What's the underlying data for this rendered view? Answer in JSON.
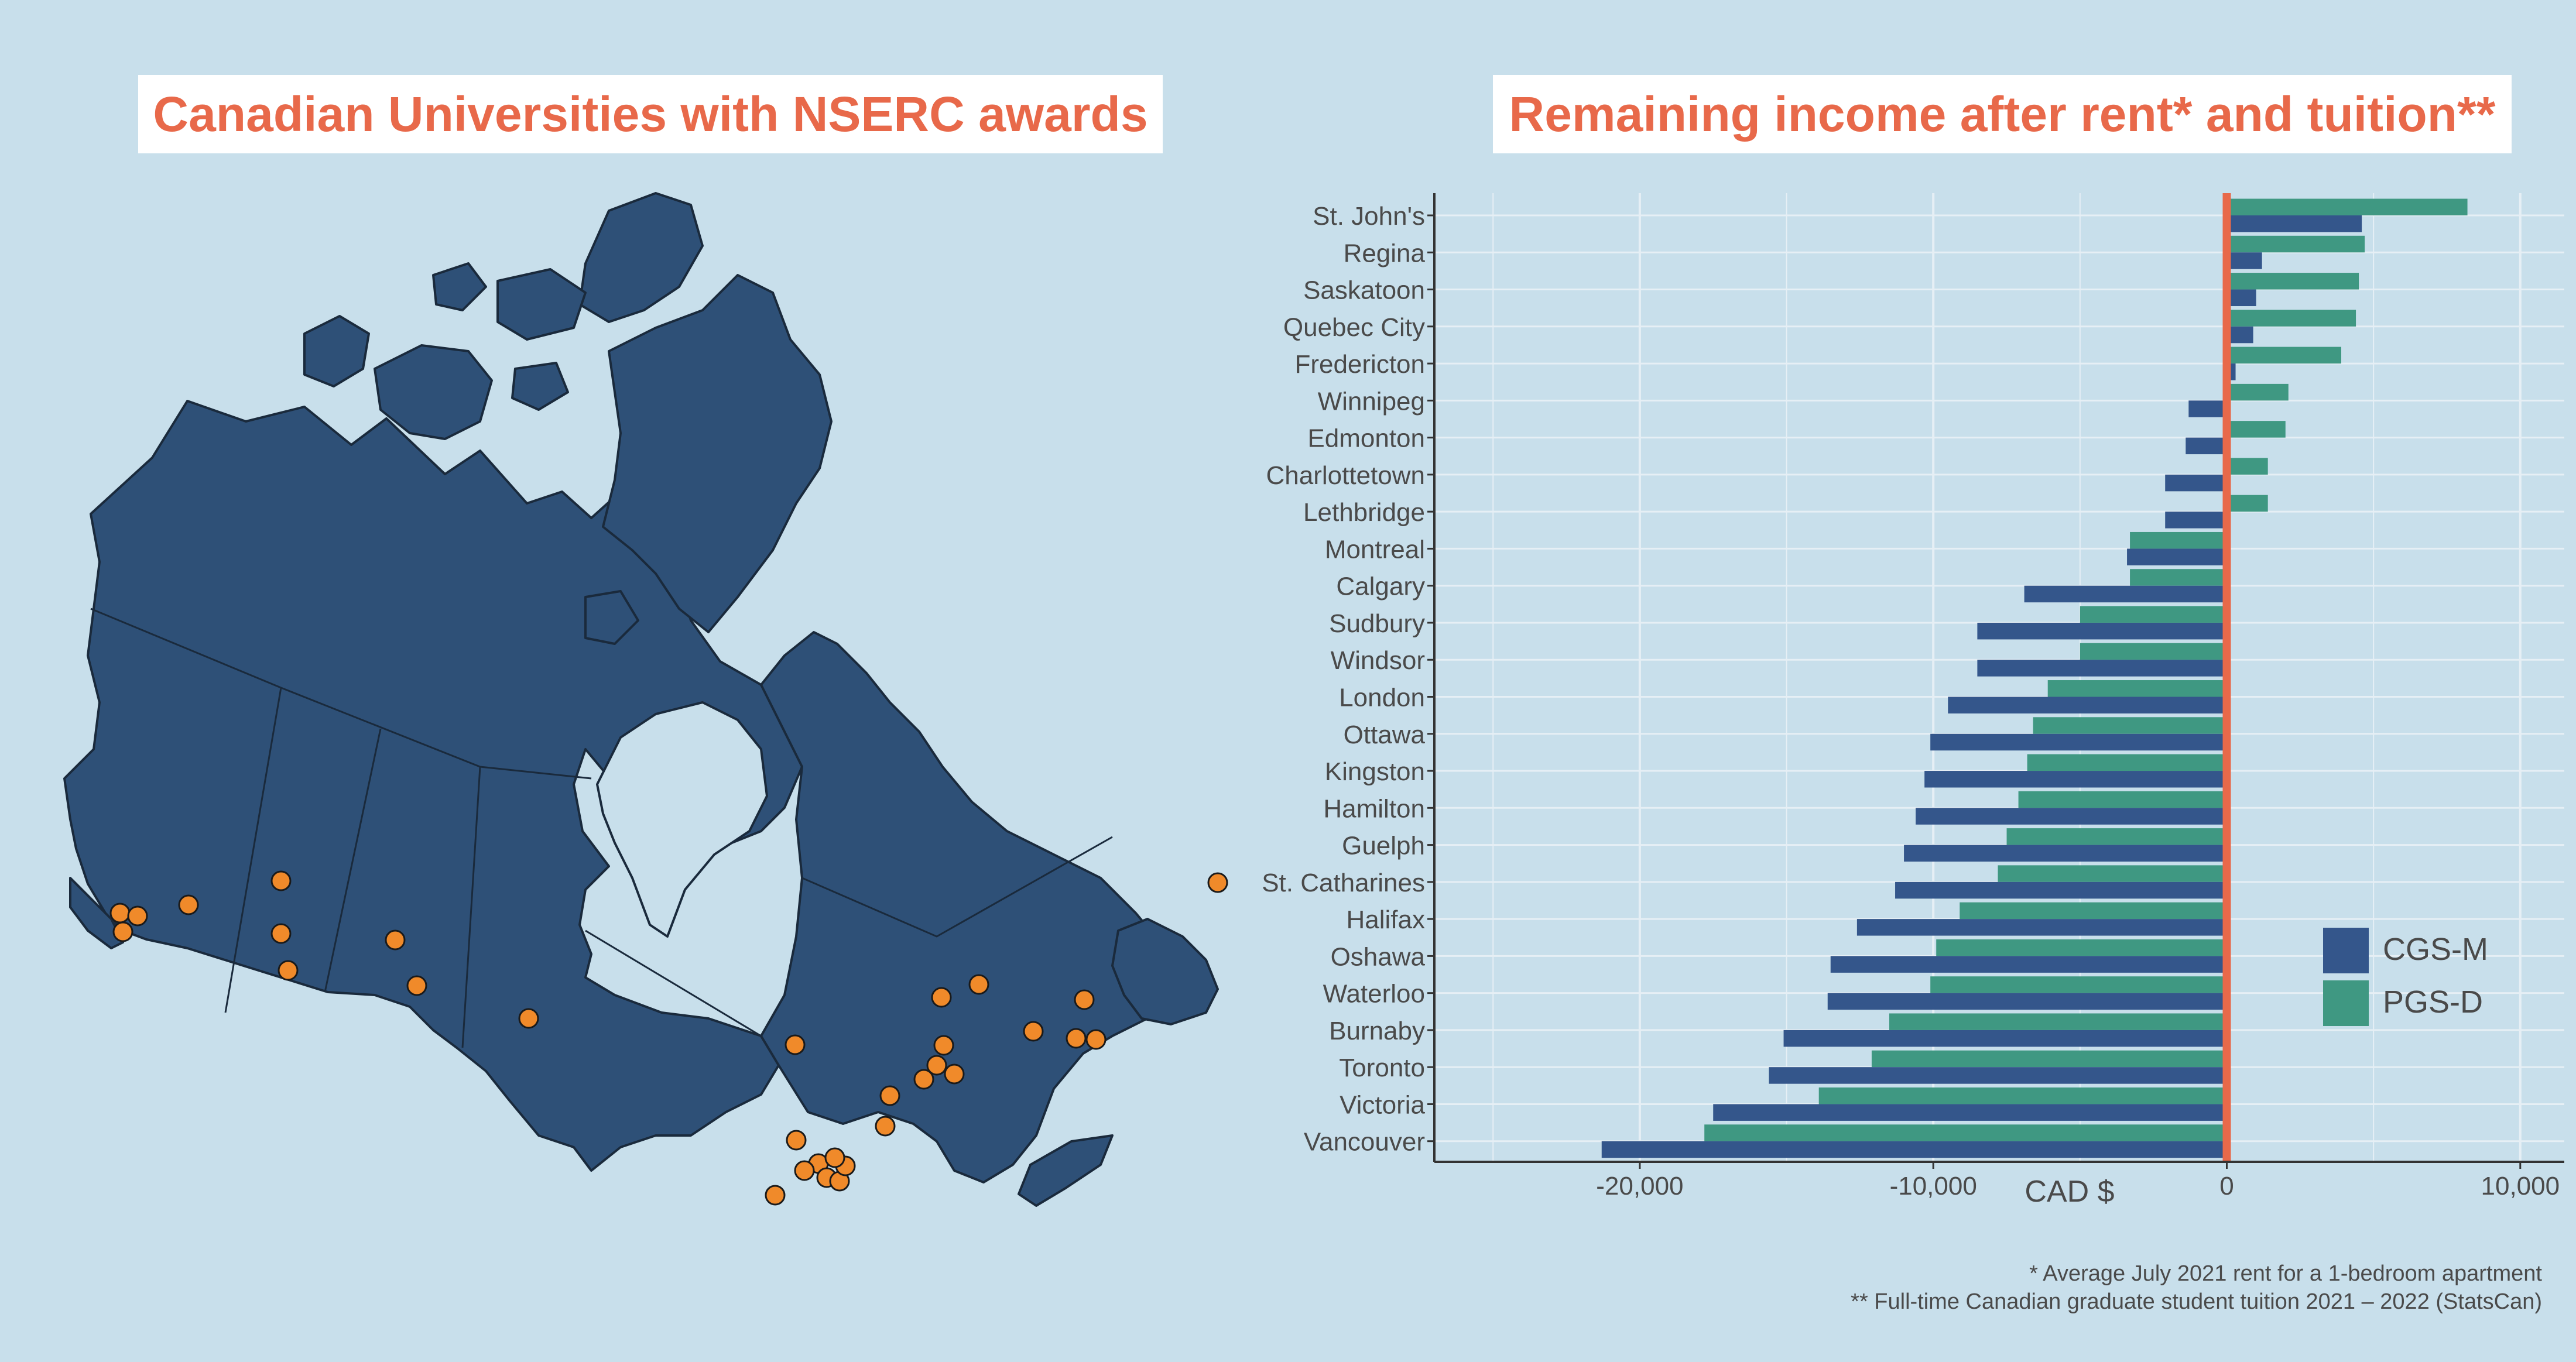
{
  "left_panel": {
    "title": "Canadian Universities with NSERC awards",
    "map_fill": "#2e5077",
    "marker_color": "#f08a2a"
  },
  "right_panel": {
    "title": "Remaining income after rent* and tuition**"
  },
  "footnotes": {
    "line1": "* Average July 2021 rent for a 1-bedroom apartment",
    "line2": "** Full-time Canadian graduate student tuition 2021 – 2022 (StatsCan)"
  },
  "chart_data": {
    "type": "bar",
    "orientation": "horizontal",
    "title": "Remaining income after rent* and tuition**",
    "xlabel": "CAD $",
    "ylabel": "",
    "xlim": [
      -27000,
      11500
    ],
    "xticks": [
      -20000,
      -10000,
      0,
      10000
    ],
    "xtick_labels": [
      "-20,000",
      "-10,000",
      "0",
      "10,000"
    ],
    "grid": true,
    "legend_position": "right",
    "zero_line_color": "#e8694a",
    "categories": [
      "St. John's",
      "Regina",
      "Saskatoon",
      "Quebec City",
      "Fredericton",
      "Winnipeg",
      "Edmonton",
      "Charlottetown",
      "Lethbridge",
      "Montreal",
      "Calgary",
      "Sudbury",
      "Windsor",
      "London",
      "Ottawa",
      "Kingston",
      "Hamilton",
      "Guelph",
      "St. Catharines",
      "Halifax",
      "Oshawa",
      "Waterloo",
      "Burnaby",
      "Toronto",
      "Victoria",
      "Vancouver"
    ],
    "series": [
      {
        "name": "CGS-M",
        "color": "#34568b",
        "values": [
          4600,
          1200,
          1000,
          900,
          300,
          -1300,
          -1400,
          -2100,
          -2100,
          -3400,
          -6900,
          -8500,
          -8500,
          -9500,
          -10100,
          -10300,
          -10600,
          -11000,
          -11300,
          -12600,
          -13500,
          -13600,
          -15100,
          -15600,
          -17500,
          -21300
        ]
      },
      {
        "name": "PGS-D",
        "color": "#3f9882",
        "values": [
          8200,
          4700,
          4500,
          4400,
          3900,
          2100,
          2000,
          1400,
          1400,
          -3300,
          -3300,
          -5000,
          -5000,
          -6100,
          -6600,
          -6800,
          -7100,
          -7500,
          -7800,
          -9100,
          -9900,
          -10100,
          -11500,
          -12100,
          -13900,
          -17800
        ]
      }
    ]
  }
}
